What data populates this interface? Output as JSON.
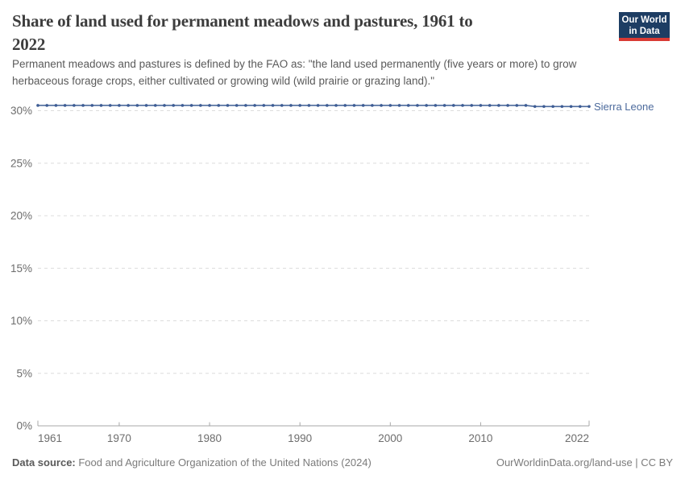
{
  "header": {
    "title_lines": [
      "Share of land used for permanent meadows and pastures, 1961 to",
      "2022"
    ],
    "subtitle_lines": [
      "Permanent meadows and pastures is defined by the FAO as: \"the land used permanently (five years or more) to grow",
      "herbaceous forage crops, either cultivated or growing wild (wild prairie or grazing land).\""
    ],
    "logo": {
      "line1": "Our World",
      "line2": "in Data",
      "bg_color": "#1d3d63",
      "accent_color": "#d93a34"
    }
  },
  "footer": {
    "data_source_label": "Data source:",
    "data_source_value": " Food and Agriculture Organization of the United Nations (2024)",
    "credit": "OurWorldinData.org/land-use | CC BY"
  },
  "chart_data": {
    "type": "line",
    "title": "Share of land used for permanent meadows and pastures, 1961 to 2022",
    "xlabel": "",
    "ylabel": "",
    "ylim": [
      0,
      31.5
    ],
    "yticks": [
      0,
      5,
      10,
      15,
      20,
      25,
      30
    ],
    "ytick_format": "{}%",
    "xticks": [
      1961,
      1970,
      1980,
      1990,
      2000,
      2010,
      2022
    ],
    "grid": "horizontal-dashed",
    "legend_position": "end-of-line-label",
    "colors": {
      "gridline": "#dcdcdc",
      "axis": "#a9a9a9",
      "tick_text": "#6d6d6d"
    },
    "series": [
      {
        "name": "Sierra Leone",
        "color": "#4c6a9c",
        "dot_color": "#3d5c94",
        "x": [
          1961,
          1962,
          1963,
          1964,
          1965,
          1966,
          1967,
          1968,
          1969,
          1970,
          1971,
          1972,
          1973,
          1974,
          1975,
          1976,
          1977,
          1978,
          1979,
          1980,
          1981,
          1982,
          1983,
          1984,
          1985,
          1986,
          1987,
          1988,
          1989,
          1990,
          1991,
          1992,
          1993,
          1994,
          1995,
          1996,
          1997,
          1998,
          1999,
          2000,
          2001,
          2002,
          2003,
          2004,
          2005,
          2006,
          2007,
          2008,
          2009,
          2010,
          2011,
          2012,
          2013,
          2014,
          2015,
          2016,
          2017,
          2018,
          2019,
          2020,
          2021,
          2022
        ],
        "values": [
          30.5,
          30.5,
          30.5,
          30.5,
          30.5,
          30.5,
          30.5,
          30.5,
          30.5,
          30.5,
          30.5,
          30.5,
          30.5,
          30.5,
          30.5,
          30.5,
          30.5,
          30.5,
          30.5,
          30.5,
          30.5,
          30.5,
          30.5,
          30.5,
          30.5,
          30.5,
          30.5,
          30.5,
          30.5,
          30.5,
          30.5,
          30.5,
          30.5,
          30.5,
          30.5,
          30.5,
          30.5,
          30.5,
          30.5,
          30.5,
          30.5,
          30.5,
          30.5,
          30.5,
          30.5,
          30.5,
          30.5,
          30.5,
          30.5,
          30.5,
          30.5,
          30.5,
          30.5,
          30.5,
          30.5,
          30.4,
          30.4,
          30.4,
          30.4,
          30.4,
          30.4,
          30.4
        ]
      }
    ]
  }
}
